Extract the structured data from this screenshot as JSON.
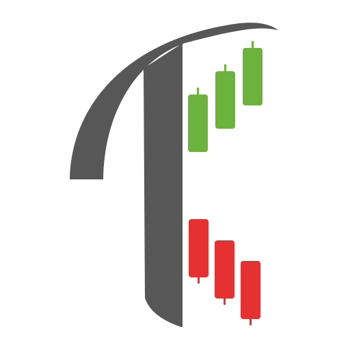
{
  "logo": {
    "icon_name": "trading-t-candlestick-logo",
    "colors": {
      "background": "#ffffff",
      "letter": "#575757",
      "bullish": "#6bb33d",
      "bearish": "#e53131"
    },
    "candles_up": [
      {
        "name": "green-candle-1"
      },
      {
        "name": "green-candle-2"
      },
      {
        "name": "green-candle-3"
      }
    ],
    "candles_down": [
      {
        "name": "red-candle-1"
      },
      {
        "name": "red-candle-2"
      },
      {
        "name": "red-candle-3"
      }
    ]
  }
}
